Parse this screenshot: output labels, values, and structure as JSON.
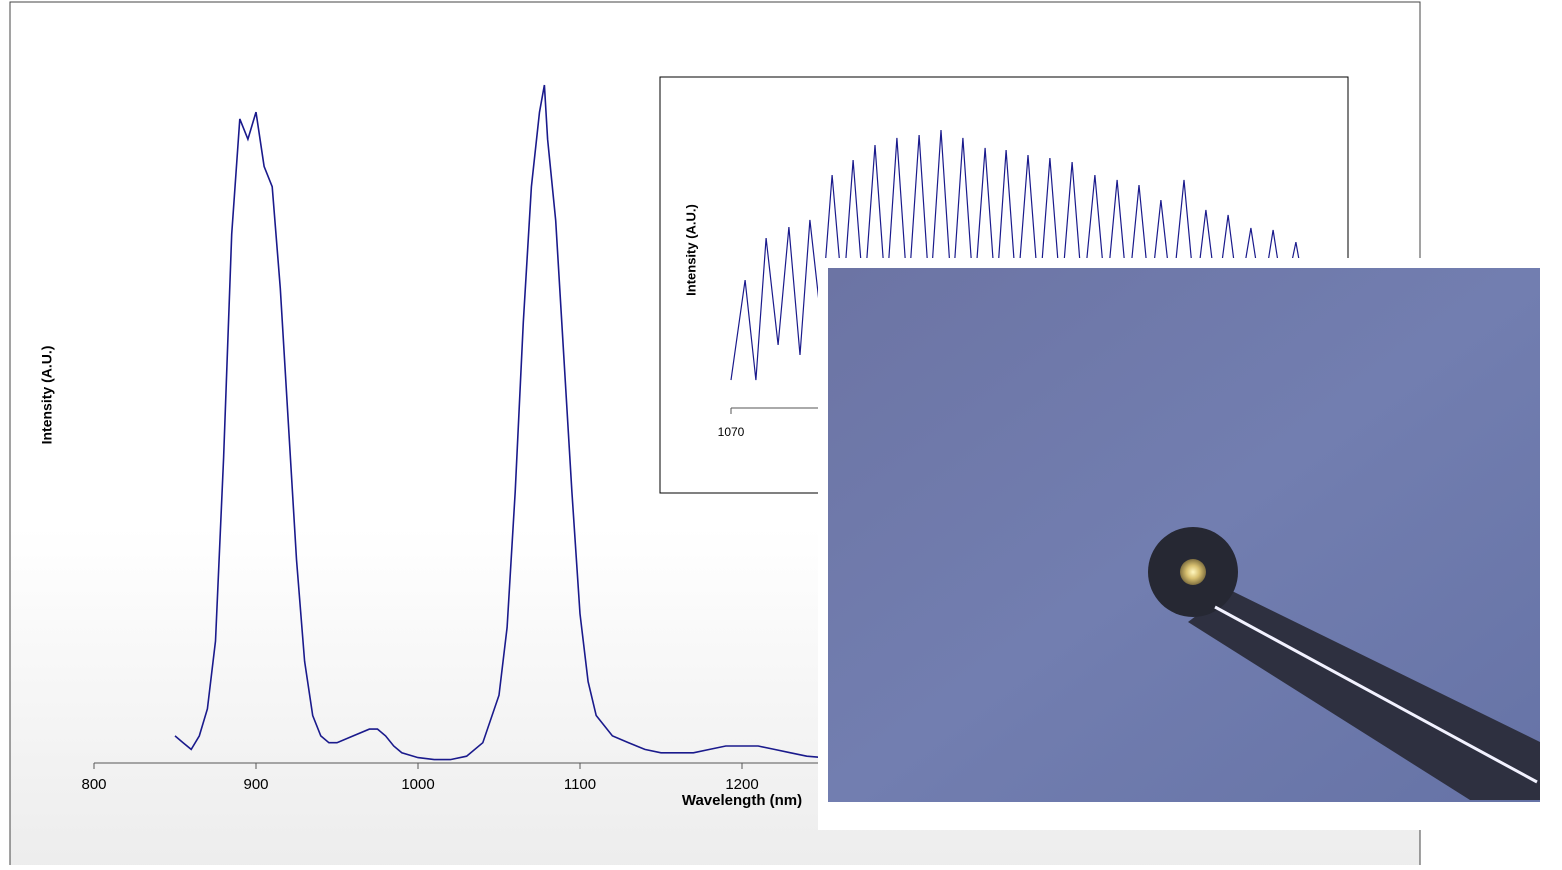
{
  "chart_data": [
    {
      "type": "line",
      "xlabel": "Wavelength (nm)",
      "ylabel": "Intensity (A.U.)",
      "color": "#1a1a8c",
      "xlim": [
        800,
        1600
      ],
      "ylim": [
        0,
        100
      ],
      "xticks": [
        800,
        900,
        1000,
        1100,
        1200
      ],
      "x": [
        850,
        855,
        860,
        865,
        870,
        875,
        880,
        885,
        890,
        895,
        900,
        905,
        910,
        915,
        920,
        925,
        930,
        935,
        940,
        945,
        950,
        960,
        970,
        975,
        980,
        985,
        990,
        1000,
        1010,
        1020,
        1030,
        1040,
        1050,
        1055,
        1060,
        1065,
        1070,
        1075,
        1078,
        1080,
        1085,
        1090,
        1095,
        1100,
        1105,
        1110,
        1120,
        1130,
        1140,
        1150,
        1160,
        1170,
        1180,
        1190,
        1200,
        1210,
        1220,
        1230,
        1240,
        1250,
        1260
      ],
      "values": [
        4,
        3,
        2,
        4,
        8,
        18,
        45,
        78,
        95,
        92,
        96,
        88,
        85,
        70,
        50,
        30,
        15,
        7,
        4,
        3,
        3,
        4,
        5,
        5,
        4,
        2.5,
        1.5,
        0.8,
        0.5,
        0.5,
        1,
        3,
        10,
        20,
        40,
        65,
        85,
        96,
        100,
        92,
        80,
        60,
        40,
        22,
        12,
        7,
        4,
        3,
        2,
        1.5,
        1.5,
        1.5,
        2,
        2.5,
        2.5,
        2.5,
        2,
        1.5,
        1,
        0.8,
        0.7
      ]
    },
    {
      "type": "line",
      "ylabel": "Intensity (A.U.)",
      "color": "#1a1a8c",
      "xlim": [
        1070,
        1090
      ],
      "ylim": [
        0,
        100
      ],
      "xticks": [
        1070
      ],
      "x": [
        1070.0,
        1070.47,
        1070.83,
        1071.17,
        1071.57,
        1071.93,
        1072.3,
        1072.63,
        1073.0,
        1073.37,
        1073.73,
        1074.07,
        1074.43,
        1074.8,
        1075.17,
        1075.53,
        1075.9,
        1076.27,
        1076.63,
        1077.0,
        1077.37,
        1077.73,
        1078.1,
        1078.47,
        1078.83,
        1079.17,
        1079.53,
        1079.9,
        1080.27,
        1080.63,
        1081.0,
        1081.37,
        1081.73,
        1082.13,
        1082.5,
        1082.87,
        1083.23,
        1083.6,
        1083.97,
        1084.33,
        1084.7,
        1085.1,
        1085.47,
        1085.83,
        1086.2,
        1086.57,
        1086.93,
        1087.33,
        1087.7,
        1088.07,
        1088.43,
        1088.83,
        1089.17
      ],
      "values": [
        9.7,
        44.4,
        9.7,
        59.0,
        21.9,
        62.8,
        18.4,
        65.3,
        30.6,
        80.9,
        37.5,
        86.1,
        37.5,
        91.3,
        37.5,
        93.8,
        37.5,
        94.8,
        37.5,
        96.5,
        37.5,
        93.8,
        37.5,
        90.3,
        37.5,
        89.6,
        37.5,
        87.8,
        37.5,
        86.8,
        37.5,
        85.4,
        37.5,
        80.9,
        37.5,
        79.2,
        37.5,
        77.4,
        37.5,
        72.2,
        37.5,
        79.2,
        37.5,
        68.8,
        37.5,
        67.0,
        37.5,
        62.5,
        37.5,
        61.8,
        37.5,
        57.6,
        37.5
      ]
    }
  ]
}
